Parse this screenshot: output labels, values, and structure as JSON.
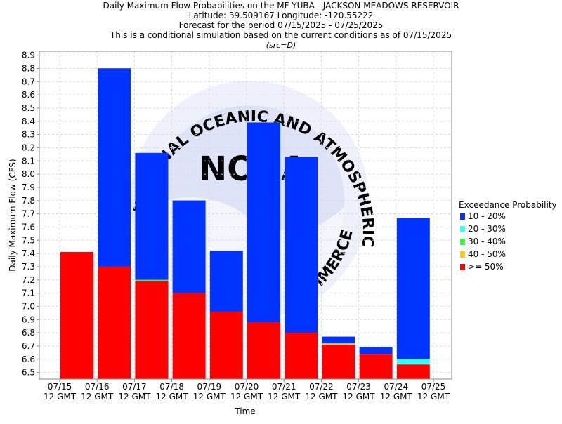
{
  "chart_data": {
    "type": "bar",
    "stacked": true,
    "title_lines": [
      "Daily Maximum Flow Probabilities on the MF YUBA - JACKSON MEADOWS RESERVOIR",
      "Latitude: 39.509167 Longitude: -120.55222",
      "Forecast for the period 07/15/2025 - 07/25/2025",
      "This is a conditional simulation based on the current conditions as of 07/15/2025"
    ],
    "subtitle": "(src=D)",
    "xlabel": "Time",
    "ylabel": "Daily Maximum Flow (CFS)",
    "ylim": [
      6.45,
      8.93
    ],
    "yticks": [
      6.5,
      6.6,
      6.7,
      6.8,
      6.9,
      7.0,
      7.1,
      7.2,
      7.3,
      7.4,
      7.5,
      7.6,
      7.7,
      7.8,
      7.9,
      8.0,
      8.1,
      8.2,
      8.3,
      8.4,
      8.5,
      8.6,
      8.7,
      8.8,
      8.9
    ],
    "xticks": [
      {
        "date": "07/15",
        "time": "12 GMT"
      },
      {
        "date": "07/16",
        "time": "12 GMT"
      },
      {
        "date": "07/17",
        "time": "12 GMT"
      },
      {
        "date": "07/18",
        "time": "12 GMT"
      },
      {
        "date": "07/19",
        "time": "12 GMT"
      },
      {
        "date": "07/20",
        "time": "12 GMT"
      },
      {
        "date": "07/21",
        "time": "12 GMT"
      },
      {
        "date": "07/22",
        "time": "12 GMT"
      },
      {
        "date": "07/23",
        "time": "12 GMT"
      },
      {
        "date": "07/24",
        "time": "12 GMT"
      },
      {
        "date": "07/25",
        "time": "12 GMT"
      }
    ],
    "grid": true,
    "legend_position": "right",
    "legend_title": "Exceedance Probability",
    "watermark": "NOAA seal",
    "series": [
      {
        "name": "10 - 20%",
        "color": "#0033ff"
      },
      {
        "name": "20 - 30%",
        "color": "#33ffff"
      },
      {
        "name": "30 - 40%",
        "color": "#33ff33"
      },
      {
        "name": "40 - 50%",
        "color": "#ffcc00"
      },
      {
        "name": ">= 50%",
        "color": "#ff0000"
      }
    ],
    "bars": [
      {
        "day": "07/15",
        "levels": [
          7.41,
          7.41,
          7.41,
          7.41,
          7.41
        ]
      },
      {
        "day": "07/16",
        "levels": [
          8.8,
          7.3,
          7.3,
          7.3,
          7.3
        ]
      },
      {
        "day": "07/17",
        "levels": [
          8.16,
          7.2,
          7.2,
          7.19,
          7.19
        ]
      },
      {
        "day": "07/18",
        "levels": [
          7.8,
          7.1,
          7.1,
          7.1,
          7.1
        ]
      },
      {
        "day": "07/19",
        "levels": [
          7.42,
          6.96,
          6.96,
          6.96,
          6.96
        ]
      },
      {
        "day": "07/20",
        "levels": [
          8.39,
          6.88,
          6.88,
          6.88,
          6.88
        ]
      },
      {
        "day": "07/21",
        "levels": [
          8.13,
          6.8,
          6.8,
          6.8,
          6.8
        ]
      },
      {
        "day": "07/22",
        "levels": [
          6.77,
          6.72,
          6.72,
          6.715,
          6.71
        ]
      },
      {
        "day": "07/23",
        "levels": [
          6.69,
          6.64,
          6.64,
          6.64,
          6.64
        ]
      },
      {
        "day": "07/24",
        "levels": [
          7.67,
          6.6,
          6.56,
          6.56,
          6.56
        ]
      }
    ]
  }
}
